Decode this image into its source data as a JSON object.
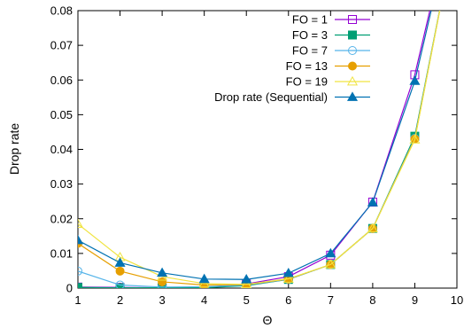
{
  "chart_data": {
    "type": "line",
    "title": "",
    "xlabel": "Θ",
    "ylabel": "Drop rate",
    "xlim": [
      1,
      10
    ],
    "ylim": [
      0,
      0.08
    ],
    "xticks": [
      1,
      2,
      3,
      4,
      5,
      6,
      7,
      8,
      9,
      10
    ],
    "yticks": [
      0,
      0.01,
      0.02,
      0.03,
      0.04,
      0.05,
      0.06,
      0.07,
      0.08
    ],
    "ytick_labels": [
      "0",
      "0.01",
      "0.02",
      "0.03",
      "0.04",
      "0.05",
      "0.06",
      "0.07",
      "0.08"
    ],
    "grid": false,
    "legend_position": "top-right",
    "series": [
      {
        "name": "FO = 1",
        "color": "#9400d3",
        "marker": "square-open",
        "points": [
          [
            1,
            0.0003
          ],
          [
            2,
            0.0002
          ],
          [
            3,
            0.0001
          ],
          [
            4,
            0.0002
          ],
          [
            5,
            0.0012
          ],
          [
            6,
            0.0033
          ],
          [
            7,
            0.0095
          ],
          [
            8,
            0.0248
          ],
          [
            9,
            0.0615
          ],
          [
            9.55,
            0.09
          ]
        ]
      },
      {
        "name": "FO = 3",
        "color": "#009e73",
        "marker": "square-filled",
        "points": [
          [
            1,
            0.0002
          ],
          [
            2,
            0.0001
          ],
          [
            3,
            0.0001
          ],
          [
            4,
            0.0001
          ],
          [
            5,
            0.0007
          ],
          [
            6,
            0.0025
          ],
          [
            7,
            0.0068
          ],
          [
            8,
            0.0172
          ],
          [
            9,
            0.0438
          ],
          [
            9.75,
            0.09
          ]
        ]
      },
      {
        "name": "FO = 7",
        "color": "#56b4e9",
        "marker": "circle-open",
        "points": [
          [
            1,
            0.0049
          ],
          [
            2,
            0.0009
          ],
          [
            3,
            0.0003
          ],
          [
            4,
            0.0004
          ],
          [
            5,
            0.0009
          ],
          [
            6,
            0.0025
          ],
          [
            7,
            0.0068
          ],
          [
            8,
            0.0172
          ],
          [
            9,
            0.0432
          ],
          [
            9.75,
            0.09
          ]
        ]
      },
      {
        "name": "FO = 13",
        "color": "#e69f00",
        "marker": "circle-filled",
        "points": [
          [
            1,
            0.0129
          ],
          [
            2,
            0.0049
          ],
          [
            3,
            0.0018
          ],
          [
            4,
            0.0009
          ],
          [
            5,
            0.001
          ],
          [
            6,
            0.0026
          ],
          [
            7,
            0.0068
          ],
          [
            8,
            0.0172
          ],
          [
            9,
            0.043
          ],
          [
            9.75,
            0.09
          ]
        ]
      },
      {
        "name": "FO = 19",
        "color": "#f0e442",
        "marker": "triangle-open",
        "points": [
          [
            1,
            0.0185
          ],
          [
            2,
            0.0089
          ],
          [
            3,
            0.0033
          ],
          [
            4,
            0.0013
          ],
          [
            5,
            0.0011
          ],
          [
            6,
            0.0027
          ],
          [
            7,
            0.0068
          ],
          [
            8,
            0.0172
          ],
          [
            9,
            0.0428
          ],
          [
            9.75,
            0.09
          ]
        ]
      },
      {
        "name": "Drop rate (Sequential)",
        "color": "#0072b2",
        "marker": "triangle-filled",
        "points": [
          [
            1,
            0.0138
          ],
          [
            2,
            0.0073
          ],
          [
            3,
            0.0044
          ],
          [
            4,
            0.0026
          ],
          [
            5,
            0.0025
          ],
          [
            6,
            0.0043
          ],
          [
            7,
            0.01
          ],
          [
            8,
            0.0247
          ],
          [
            9,
            0.0597
          ],
          [
            9.58,
            0.09
          ]
        ]
      }
    ]
  }
}
